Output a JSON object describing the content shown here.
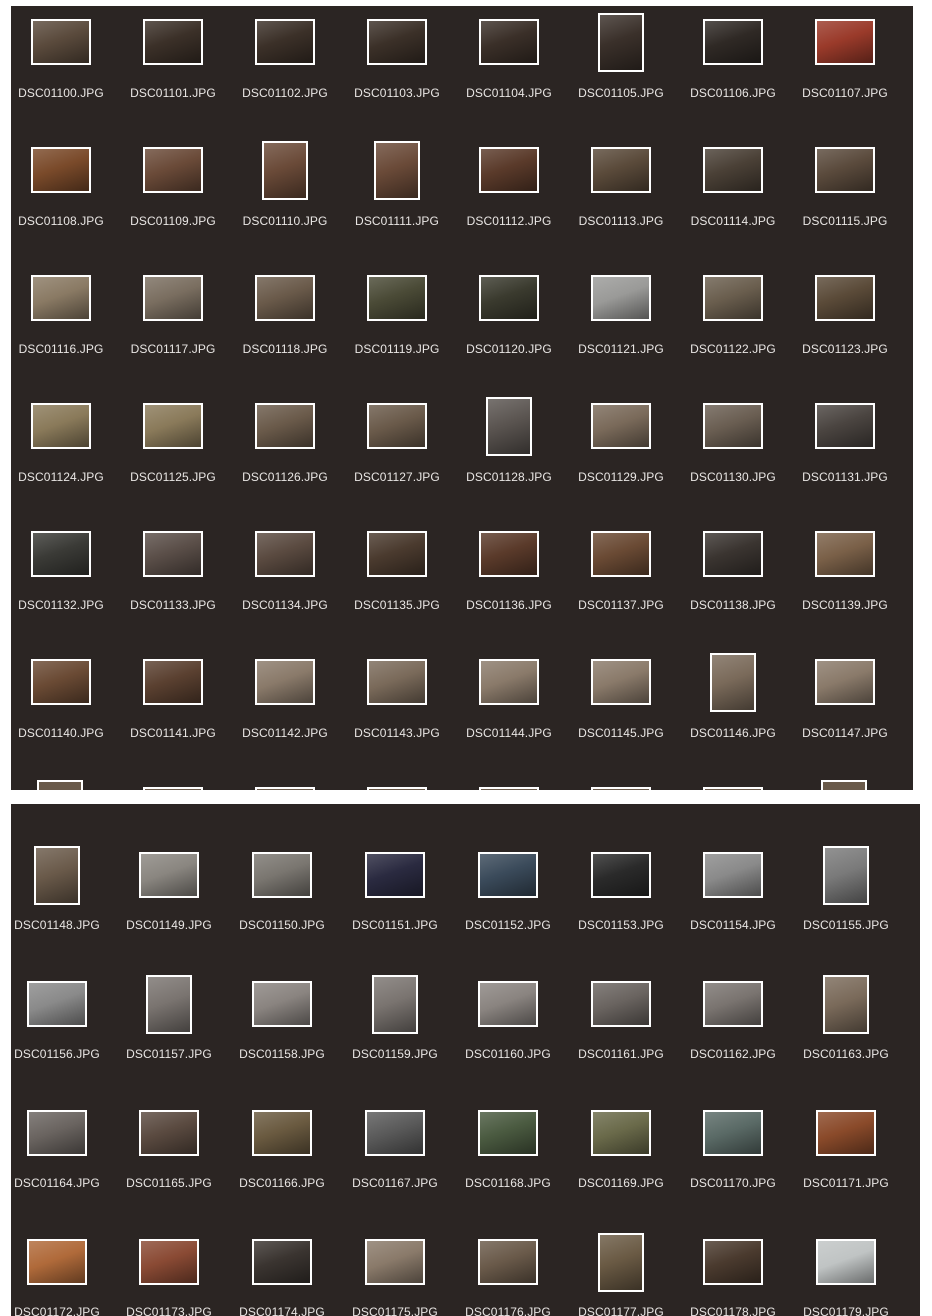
{
  "top_panel": {
    "files": [
      {
        "name": "DSC01100.JPG",
        "orientation": "landscape",
        "tone": "#5a4a3c"
      },
      {
        "name": "DSC01101.JPG",
        "orientation": "landscape",
        "tone": "#3b3028"
      },
      {
        "name": "DSC01102.JPG",
        "orientation": "landscape",
        "tone": "#3b3028"
      },
      {
        "name": "DSC01103.JPG",
        "orientation": "landscape",
        "tone": "#3b3028"
      },
      {
        "name": "DSC01104.JPG",
        "orientation": "landscape",
        "tone": "#3a2f28"
      },
      {
        "name": "DSC01105.JPG",
        "orientation": "portrait",
        "tone": "#3a302a"
      },
      {
        "name": "DSC01106.JPG",
        "orientation": "landscape",
        "tone": "#2f2925"
      },
      {
        "name": "DSC01107.JPG",
        "orientation": "landscape",
        "tone": "#9a3a2a"
      },
      {
        "name": "DSC01108.JPG",
        "orientation": "landscape",
        "tone": "#7a4a2a"
      },
      {
        "name": "DSC01109.JPG",
        "orientation": "landscape",
        "tone": "#6a4a38"
      },
      {
        "name": "DSC01110.JPG",
        "orientation": "portrait",
        "tone": "#6a4a38"
      },
      {
        "name": "DSC01111.JPG",
        "orientation": "portrait",
        "tone": "#6a4a38"
      },
      {
        "name": "DSC01112.JPG",
        "orientation": "landscape",
        "tone": "#5a3a2a"
      },
      {
        "name": "DSC01113.JPG",
        "orientation": "landscape",
        "tone": "#5a4a3a"
      },
      {
        "name": "DSC01114.JPG",
        "orientation": "landscape",
        "tone": "#4a4036"
      },
      {
        "name": "DSC01115.JPG",
        "orientation": "landscape",
        "tone": "#5a4a3c"
      },
      {
        "name": "DSC01116.JPG",
        "orientation": "landscape",
        "tone": "#8a7a64"
      },
      {
        "name": "DSC01117.JPG",
        "orientation": "landscape",
        "tone": "#7a6e60"
      },
      {
        "name": "DSC01118.JPG",
        "orientation": "landscape",
        "tone": "#6a5a4a"
      },
      {
        "name": "DSC01119.JPG",
        "orientation": "landscape",
        "tone": "#4a4a36"
      },
      {
        "name": "DSC01120.JPG",
        "orientation": "landscape",
        "tone": "#3a3a2e"
      },
      {
        "name": "DSC01121.JPG",
        "orientation": "landscape",
        "tone": "#9a9a98"
      },
      {
        "name": "DSC01122.JPG",
        "orientation": "landscape",
        "tone": "#6a5e4e"
      },
      {
        "name": "DSC01123.JPG",
        "orientation": "landscape",
        "tone": "#5a4a38"
      },
      {
        "name": "DSC01124.JPG",
        "orientation": "landscape",
        "tone": "#8a7a5a"
      },
      {
        "name": "DSC01125.JPG",
        "orientation": "landscape",
        "tone": "#8a7a5a"
      },
      {
        "name": "DSC01126.JPG",
        "orientation": "landscape",
        "tone": "#6a5a4a"
      },
      {
        "name": "DSC01127.JPG",
        "orientation": "landscape",
        "tone": "#6a5a4a"
      },
      {
        "name": "DSC01128.JPG",
        "orientation": "portrait",
        "tone": "#5a5450"
      },
      {
        "name": "DSC01129.JPG",
        "orientation": "landscape",
        "tone": "#7a6a5a"
      },
      {
        "name": "DSC01130.JPG",
        "orientation": "landscape",
        "tone": "#6a5e52"
      },
      {
        "name": "DSC01131.JPG",
        "orientation": "landscape",
        "tone": "#4a4440"
      },
      {
        "name": "DSC01132.JPG",
        "orientation": "landscape",
        "tone": "#3a3a36"
      },
      {
        "name": "DSC01133.JPG",
        "orientation": "landscape",
        "tone": "#5a4e48"
      },
      {
        "name": "DSC01134.JPG",
        "orientation": "landscape",
        "tone": "#5a4a40"
      },
      {
        "name": "DSC01135.JPG",
        "orientation": "landscape",
        "tone": "#4a3a2e"
      },
      {
        "name": "DSC01136.JPG",
        "orientation": "landscape",
        "tone": "#5a3a2a"
      },
      {
        "name": "DSC01137.JPG",
        "orientation": "landscape",
        "tone": "#6a4a34"
      },
      {
        "name": "DSC01138.JPG",
        "orientation": "landscape",
        "tone": "#3a3430"
      },
      {
        "name": "DSC01139.JPG",
        "orientation": "landscape",
        "tone": "#7a6048"
      },
      {
        "name": "DSC01140.JPG",
        "orientation": "landscape",
        "tone": "#6a4a34"
      },
      {
        "name": "DSC01141.JPG",
        "orientation": "landscape",
        "tone": "#5a4030"
      },
      {
        "name": "DSC01142.JPG",
        "orientation": "landscape",
        "tone": "#8a7a6a"
      },
      {
        "name": "DSC01143.JPG",
        "orientation": "landscape",
        "tone": "#7a6a5a"
      },
      {
        "name": "DSC01144.JPG",
        "orientation": "landscape",
        "tone": "#8a7a6a"
      },
      {
        "name": "DSC01145.JPG",
        "orientation": "landscape",
        "tone": "#8a7a6a"
      },
      {
        "name": "DSC01146.JPG",
        "orientation": "portrait",
        "tone": "#7a6a5a"
      },
      {
        "name": "DSC01147.JPG",
        "orientation": "landscape",
        "tone": "#8a7a6a"
      }
    ]
  },
  "bottom_panel": {
    "files": [
      {
        "name": "DSC01148.JPG",
        "orientation": "portrait",
        "tone": "#6a5a4a"
      },
      {
        "name": "DSC01149.JPG",
        "orientation": "landscape",
        "tone": "#8a8680"
      },
      {
        "name": "DSC01150.JPG",
        "orientation": "landscape",
        "tone": "#7a7670"
      },
      {
        "name": "DSC01151.JPG",
        "orientation": "landscape",
        "tone": "#2a2a40"
      },
      {
        "name": "DSC01152.JPG",
        "orientation": "landscape",
        "tone": "#3a4a5a"
      },
      {
        "name": "DSC01153.JPG",
        "orientation": "landscape",
        "tone": "#2a2a2a"
      },
      {
        "name": "DSC01154.JPG",
        "orientation": "landscape",
        "tone": "#8a8a8a"
      },
      {
        "name": "DSC01155.JPG",
        "orientation": "portrait",
        "tone": "#7a7a7a"
      },
      {
        "name": "DSC01156.JPG",
        "orientation": "landscape",
        "tone": "#8a8a8a"
      },
      {
        "name": "DSC01157.JPG",
        "orientation": "portrait",
        "tone": "#7a7470"
      },
      {
        "name": "DSC01158.JPG",
        "orientation": "landscape",
        "tone": "#8a8480"
      },
      {
        "name": "DSC01159.JPG",
        "orientation": "portrait",
        "tone": "#7a7470"
      },
      {
        "name": "DSC01160.JPG",
        "orientation": "landscape",
        "tone": "#8a8480"
      },
      {
        "name": "DSC01161.JPG",
        "orientation": "landscape",
        "tone": "#6a6460"
      },
      {
        "name": "DSC01162.JPG",
        "orientation": "landscape",
        "tone": "#7a7470"
      },
      {
        "name": "DSC01163.JPG",
        "orientation": "portrait",
        "tone": "#7a6a5a"
      },
      {
        "name": "DSC01164.JPG",
        "orientation": "landscape",
        "tone": "#6a6460"
      },
      {
        "name": "DSC01165.JPG",
        "orientation": "landscape",
        "tone": "#5a4a40"
      },
      {
        "name": "DSC01166.JPG",
        "orientation": "landscape",
        "tone": "#6a5a40"
      },
      {
        "name": "DSC01167.JPG",
        "orientation": "landscape",
        "tone": "#5a5a5a"
      },
      {
        "name": "DSC01168.JPG",
        "orientation": "landscape",
        "tone": "#4a5a40"
      },
      {
        "name": "DSC01169.JPG",
        "orientation": "landscape",
        "tone": "#6a6a4a"
      },
      {
        "name": "DSC01170.JPG",
        "orientation": "landscape",
        "tone": "#5a6a66"
      },
      {
        "name": "DSC01171.JPG",
        "orientation": "landscape",
        "tone": "#8a4a2a"
      },
      {
        "name": "DSC01172.JPG",
        "orientation": "landscape",
        "tone": "#b06a3a"
      },
      {
        "name": "DSC01173.JPG",
        "orientation": "landscape",
        "tone": "#8a4a34"
      },
      {
        "name": "DSC01174.JPG",
        "orientation": "landscape",
        "tone": "#3a3430"
      },
      {
        "name": "DSC01175.JPG",
        "orientation": "landscape",
        "tone": "#8a7a6a"
      },
      {
        "name": "DSC01176.JPG",
        "orientation": "landscape",
        "tone": "#6a5a4a"
      },
      {
        "name": "DSC01177.JPG",
        "orientation": "portrait",
        "tone": "#6a5a44"
      },
      {
        "name": "DSC01178.JPG",
        "orientation": "landscape",
        "tone": "#4a3a2e"
      },
      {
        "name": "DSC01179.JPG",
        "orientation": "landscape",
        "tone": "#c0c4c4"
      }
    ]
  }
}
